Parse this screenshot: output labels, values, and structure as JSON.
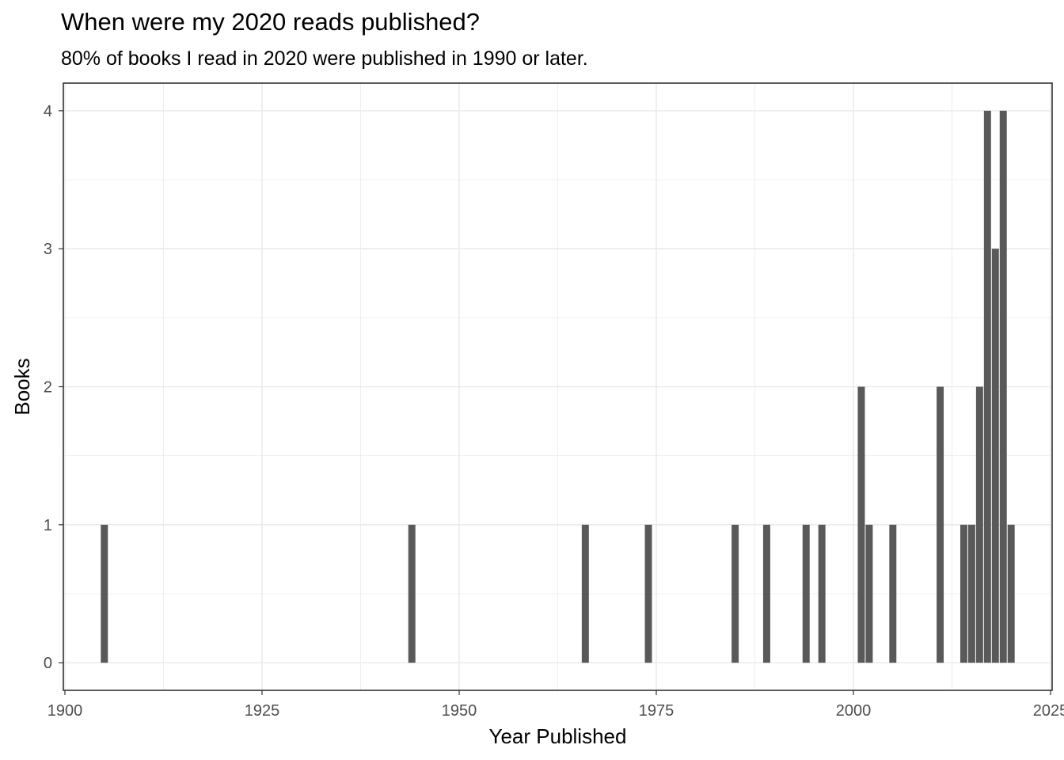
{
  "chart_data": {
    "type": "bar",
    "title": "When were my 2020 reads published?",
    "subtitle": "80% of books I read in 2020 were published in 1990 or later.",
    "xlabel": "Year Published",
    "ylabel": "Books",
    "x": [
      1905,
      1944,
      1966,
      1974,
      1985,
      1989,
      1994,
      1996,
      2001,
      2002,
      2005,
      2011,
      2014,
      2015,
      2016,
      2017,
      2018,
      2019,
      2020
    ],
    "values": [
      1,
      1,
      1,
      1,
      1,
      1,
      1,
      1,
      2,
      1,
      1,
      2,
      1,
      1,
      2,
      4,
      3,
      4,
      1
    ],
    "xlim": [
      1899.8,
      2025.2
    ],
    "ylim": [
      -0.2,
      4.2
    ],
    "xticks": [
      1900,
      1925,
      1950,
      1975,
      2000,
      2025
    ],
    "yticks": [
      0,
      1,
      2,
      3,
      4
    ],
    "grid": true,
    "bar_color": "#595959",
    "grid_color": "#ebebeb",
    "panel_border_color": "#333333"
  }
}
